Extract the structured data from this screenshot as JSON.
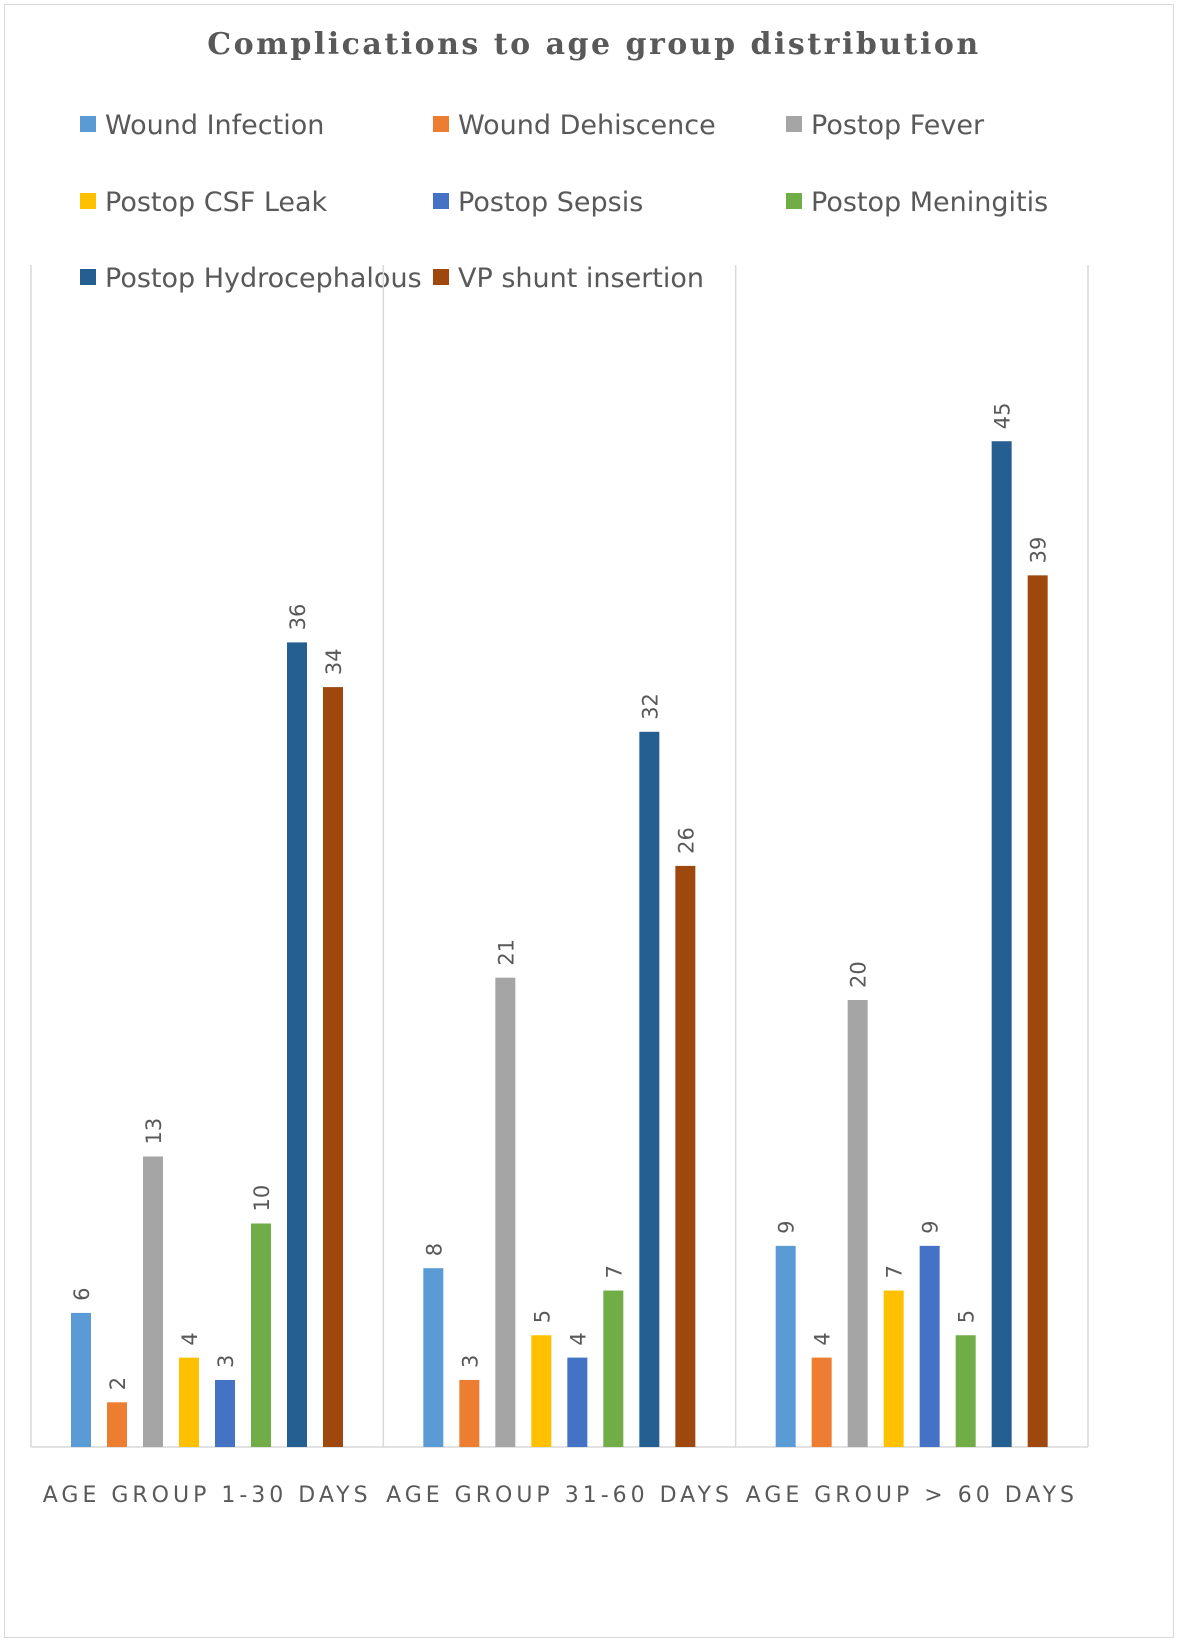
{
  "chart_data": {
    "type": "bar",
    "title": "Complications to age group distribution",
    "xlabel": "",
    "ylabel": "",
    "ylim": [
      0,
      50
    ],
    "grid": "vertical separators between categories",
    "legend_position": "top",
    "data_labels": "rotated, above bars",
    "categories": [
      "AGE GROUP 1-30 DAYS",
      "AGE GROUP 31-60 DAYS",
      "AGE GROUP > 60 DAYS"
    ],
    "series": [
      {
        "name": "Wound Infection",
        "color": "#5b9bd5",
        "values": [
          6,
          8,
          9
        ]
      },
      {
        "name": "Wound Dehiscence",
        "color": "#ed7d31",
        "values": [
          2,
          3,
          4
        ]
      },
      {
        "name": "Postop Fever",
        "color": "#a5a5a5",
        "values": [
          13,
          21,
          20
        ]
      },
      {
        "name": "Postop CSF Leak",
        "color": "#ffc000",
        "values": [
          4,
          5,
          7
        ]
      },
      {
        "name": "Postop Sepsis",
        "color": "#4472c4",
        "values": [
          3,
          4,
          9
        ]
      },
      {
        "name": "Postop Meningitis",
        "color": "#70ad47",
        "values": [
          10,
          7,
          5
        ]
      },
      {
        "name": "Postop Hydrocephalous",
        "color": "#255e91",
        "values": [
          36,
          32,
          45
        ]
      },
      {
        "name": "VP shunt insertion",
        "color": "#9e480e",
        "values": [
          34,
          26,
          39
        ]
      }
    ]
  }
}
